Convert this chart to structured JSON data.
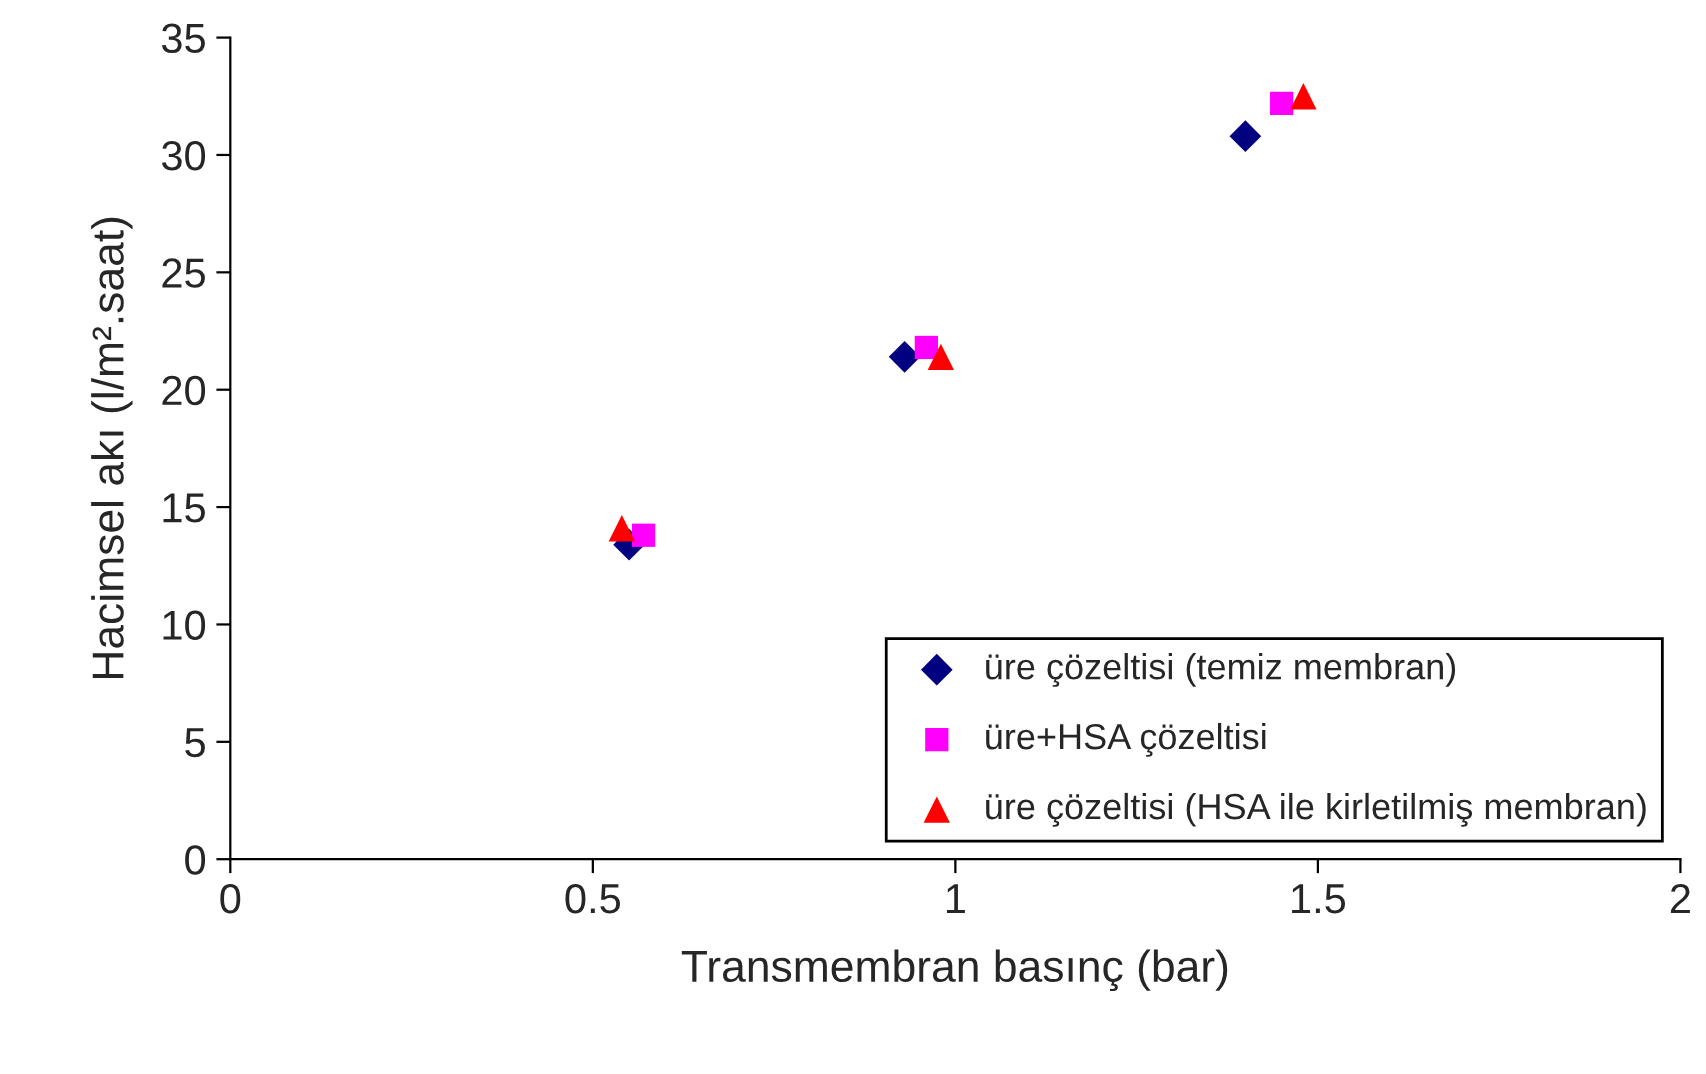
{
  "chart_data": {
    "type": "scatter",
    "xlabel": "Transmembran basınç (bar)",
    "ylabel": "Hacimsel akı (l/m².saat)",
    "xlim": [
      0,
      2
    ],
    "xticks": [
      0,
      0.5,
      1,
      1.5,
      2
    ],
    "ylim": [
      0,
      35
    ],
    "yticks": [
      0,
      5,
      10,
      15,
      20,
      25,
      30,
      35
    ],
    "grid": false,
    "legend": "bottom right",
    "series": [
      {
        "name": "üre çözeltisi (temiz membran)",
        "color": "#000080",
        "marker": "diamond",
        "x": [
          0.55,
          0.93,
          1.4
        ],
        "values": [
          13.4,
          21.4,
          30.8
        ]
      },
      {
        "name": "üre+HSA çözeltisi",
        "color": "#ff00ff",
        "marker": "square",
        "x": [
          0.57,
          0.96,
          1.45
        ],
        "values": [
          13.8,
          21.8,
          32.2
        ]
      },
      {
        "name": "üre çözeltisi (HSA ile kirletilmiş membran)",
        "color": "#ff0000",
        "marker": "triangle",
        "x": [
          0.54,
          0.98,
          1.48
        ],
        "values": [
          14.1,
          21.4,
          32.5
        ]
      }
    ]
  }
}
